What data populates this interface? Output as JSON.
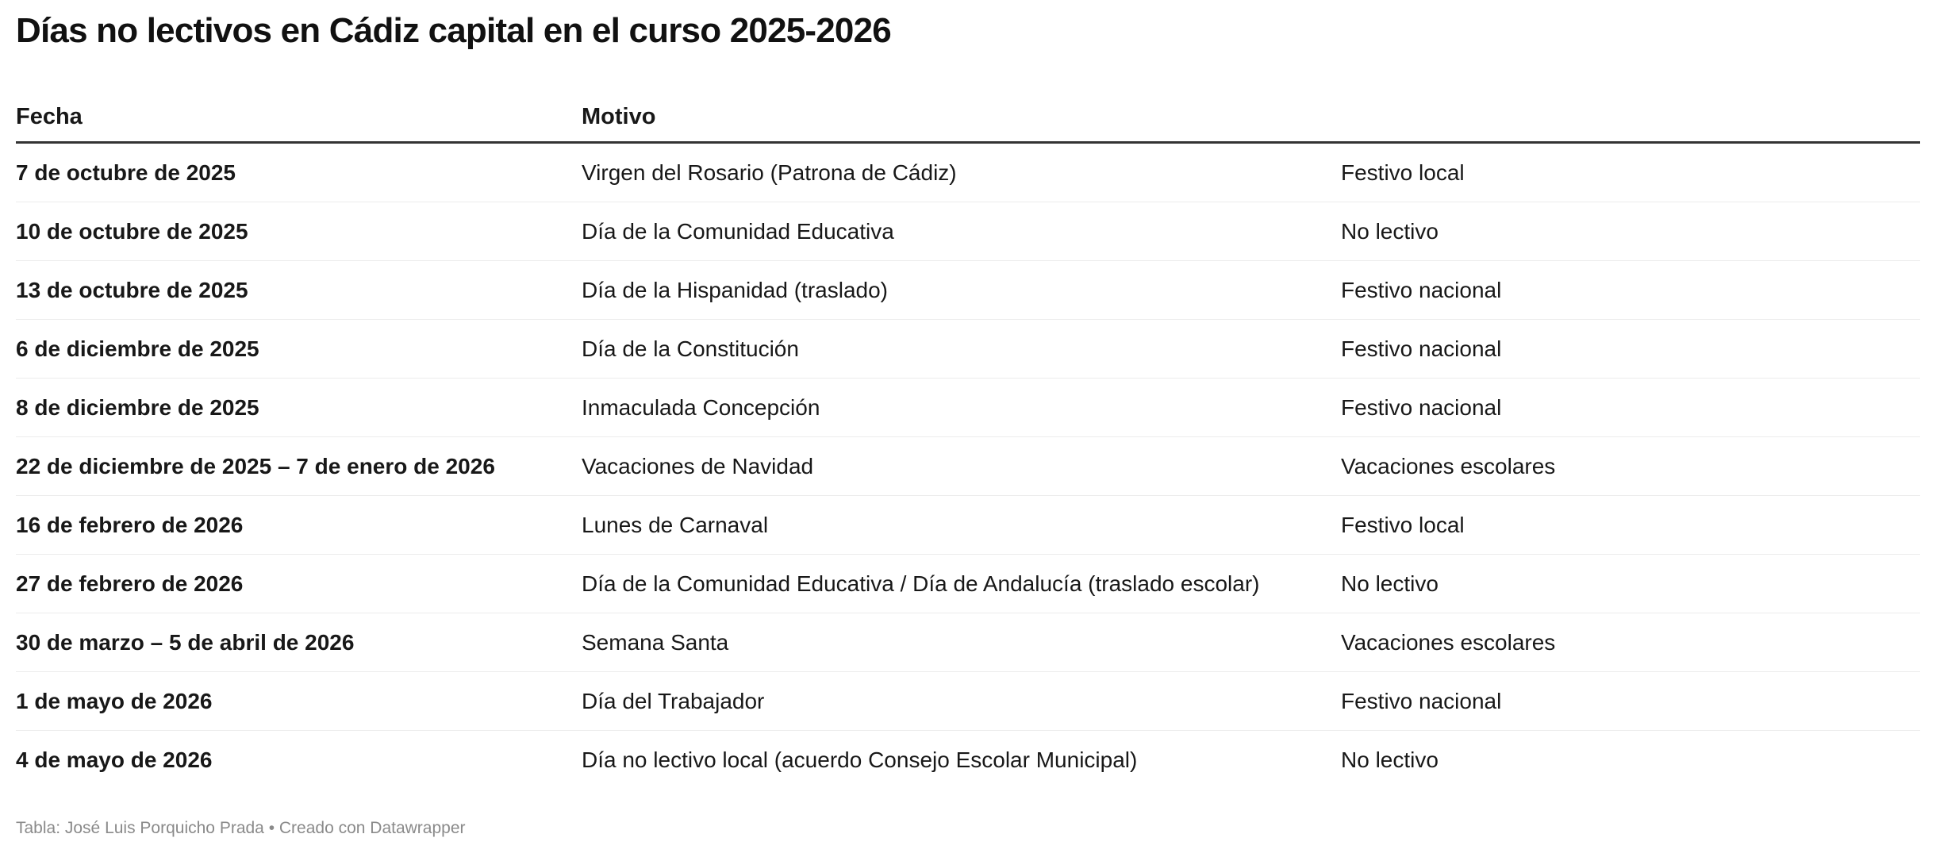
{
  "title": "Días no lectivos en Cádiz capital en el curso 2025-2026",
  "table": {
    "headers": [
      "Fecha",
      "Motivo",
      ""
    ],
    "rows": [
      [
        "7 de octubre de 2025",
        "Virgen del Rosario (Patrona de Cádiz)",
        "Festivo local"
      ],
      [
        "10 de octubre de 2025",
        "Día de la Comunidad Educativa",
        "No lectivo"
      ],
      [
        "13 de octubre de 2025",
        "Día de la Hispanidad (traslado)",
        "Festivo nacional"
      ],
      [
        "6 de diciembre de 2025",
        "Día de la Constitución",
        "Festivo nacional"
      ],
      [
        "8 de diciembre de 2025",
        "Inmaculada Concepción",
        "Festivo nacional"
      ],
      [
        "22 de diciembre de 2025 – 7 de enero de 2026",
        "Vacaciones de Navidad",
        "Vacaciones escolares"
      ],
      [
        "16 de febrero de 2026",
        "Lunes de Carnaval",
        "Festivo local"
      ],
      [
        "27 de febrero de 2026",
        "Día de la Comunidad Educativa / Día de Andalucía (traslado escolar)",
        "No lectivo"
      ],
      [
        "30 de marzo – 5 de abril de 2026",
        "Semana Santa",
        "Vacaciones escolares"
      ],
      [
        "1 de mayo de 2026",
        "Día del Trabajador",
        "Festivo nacional"
      ],
      [
        "4 de mayo de 2026",
        "Día no lectivo local (acuerdo Consejo Escolar Municipal)",
        "No lectivo"
      ]
    ]
  },
  "footer": "Tabla: José Luis Porquicho Prada • Creado con Datawrapper"
}
